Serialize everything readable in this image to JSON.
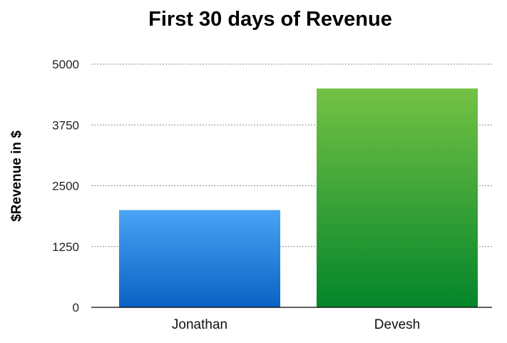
{
  "chart_data": {
    "type": "bar",
    "title": "First 30 days of Revenue",
    "xlabel": "",
    "ylabel": "$Revenue in $",
    "categories": [
      "Jonathan",
      "Devesh"
    ],
    "values": [
      2000,
      4500
    ],
    "ylim": [
      0,
      5000
    ],
    "yticks": [
      0,
      1250,
      2500,
      3750,
      5000
    ],
    "ytick_labels": [
      "0",
      "1250",
      "2500",
      "3750",
      "5000"
    ],
    "grid": true,
    "legend": "none",
    "bar_colors": [
      {
        "top": "#4aa3f5",
        "bottom": "#0a62c4"
      },
      {
        "top": "#74c244",
        "bottom": "#04852b"
      }
    ]
  }
}
